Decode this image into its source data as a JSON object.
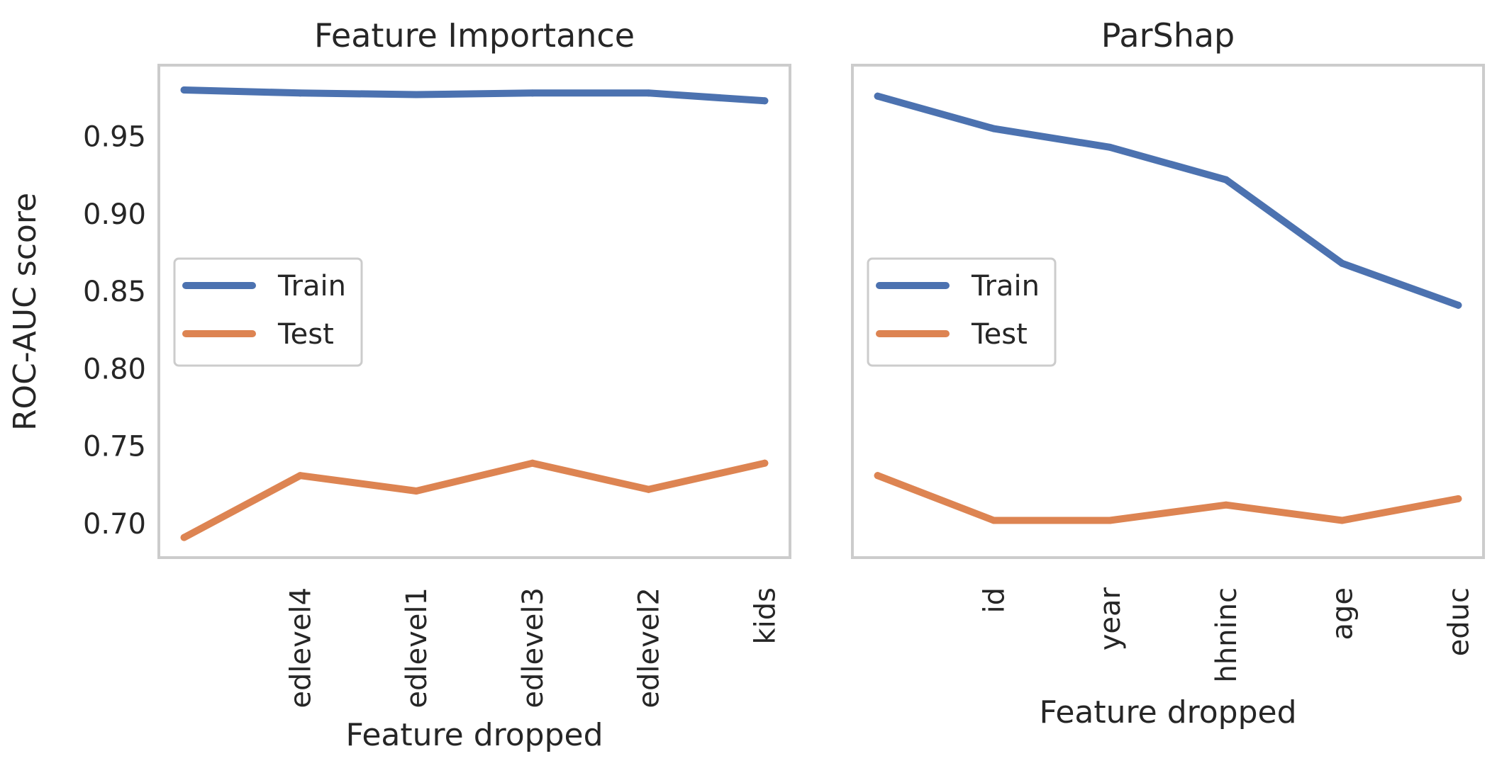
{
  "ylabel": "ROC-AUC score",
  "chart_data": [
    {
      "type": "line",
      "title": "Feature Importance",
      "xlabel": "Feature dropped",
      "ylabel": "ROC-AUC score",
      "categories": [
        "",
        "edlevel4",
        "edlevel1",
        "edlevel3",
        "edlevel2",
        "kids"
      ],
      "ylim": [
        0.678,
        0.996
      ],
      "yticks": [
        "0.70",
        "0.75",
        "0.80",
        "0.85",
        "0.90",
        "0.95"
      ],
      "grid": false,
      "legend": "center-left",
      "series": [
        {
          "name": "Train",
          "color": "#4c72b0",
          "values": [
            0.98,
            0.978,
            0.977,
            0.978,
            0.978,
            0.973
          ]
        },
        {
          "name": "Test",
          "color": "#dd8452",
          "values": [
            0.691,
            0.731,
            0.721,
            0.739,
            0.722,
            0.739
          ]
        }
      ]
    },
    {
      "type": "line",
      "title": "ParShap",
      "xlabel": "Feature dropped",
      "categories": [
        "",
        "id",
        "year",
        "hhninc",
        "age",
        "educ"
      ],
      "ylim": [
        0.678,
        0.996
      ],
      "grid": false,
      "legend": "center-left",
      "series": [
        {
          "name": "Train",
          "color": "#4c72b0",
          "values": [
            0.976,
            0.955,
            0.943,
            0.922,
            0.868,
            0.841
          ]
        },
        {
          "name": "Test",
          "color": "#dd8452",
          "values": [
            0.731,
            0.702,
            0.702,
            0.712,
            0.702,
            0.716
          ]
        }
      ]
    }
  ]
}
